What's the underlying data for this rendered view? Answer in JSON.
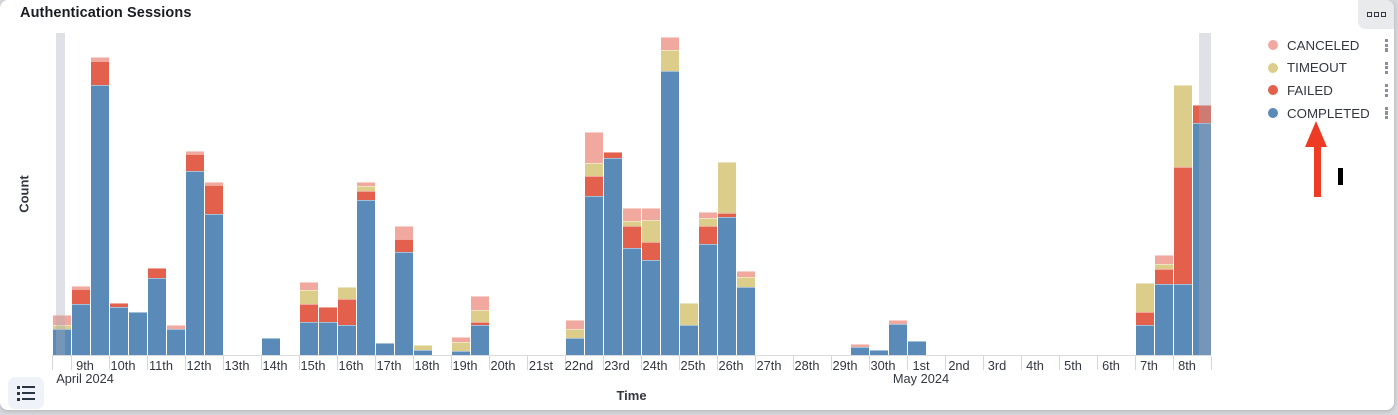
{
  "panel": {
    "title": "Authentication Sessions"
  },
  "toolbar": {
    "panel_options_icon": "boxes-horizontal-icon"
  },
  "footer": {
    "legend_toggle_icon": "list-icon"
  },
  "legend": {
    "items": [
      {
        "label": "CANCELED",
        "color": "#f1a99f"
      },
      {
        "label": "TIMEOUT",
        "color": "#dcce8a"
      },
      {
        "label": "FAILED",
        "color": "#e2604c"
      },
      {
        "label": "COMPLETED",
        "color": "#5a8ab8"
      }
    ],
    "action_icon": "boxes-vertical-icon"
  },
  "annotations": {
    "arrow": {
      "shape": "up-arrow",
      "color": "#ee3b24",
      "points_at": "COMPLETED legend item"
    },
    "cursor": {
      "shape": "text-cursor-bar",
      "color": "#000000"
    }
  },
  "chart_data": {
    "type": "bar",
    "stacked": true,
    "title": "Authentication Sessions",
    "xlabel": "Time",
    "ylabel": "Count",
    "grid": false,
    "legend_position": "right",
    "legend_order": [
      "CANCELED",
      "TIMEOUT",
      "FAILED",
      "COMPLETED"
    ],
    "y_tick_labels_shown": false,
    "ylim": [
      0,
      325
    ],
    "x_start": "2024-04-08T12:00",
    "x_interval_hours": 12,
    "x_bucket_count": 61,
    "x_tick_labels": [
      "9th",
      "10th",
      "11th",
      "12th",
      "13th",
      "14th",
      "15th",
      "16th",
      "17th",
      "18th",
      "19th",
      "20th",
      "21st",
      "22nd",
      "23rd",
      "24th",
      "25th",
      "26th",
      "27th",
      "28th",
      "29th",
      "30th",
      "1st",
      "2nd",
      "3rd",
      "4th",
      "5th",
      "6th",
      "7th",
      "8th"
    ],
    "x_month_labels": [
      {
        "label": "April 2024",
        "day_index": 0
      },
      {
        "label": "May 2024",
        "day_index": 22
      }
    ],
    "partial_bucket_endzones": [
      "left",
      "right"
    ],
    "series": [
      {
        "name": "COMPLETED",
        "color": "#5a8ab8",
        "values": [
          26,
          51,
          273,
          48,
          43,
          78,
          26,
          186,
          142,
          0,
          0,
          17,
          0,
          33,
          33,
          30,
          156,
          12,
          104,
          5,
          0,
          4,
          30,
          0,
          0,
          0,
          0,
          17,
          161,
          199,
          108,
          96,
          287,
          30,
          112,
          139,
          69,
          0,
          0,
          0,
          0,
          0,
          8,
          5,
          31,
          14,
          0,
          0,
          0,
          0,
          0,
          0,
          0,
          0,
          0,
          0,
          0,
          30,
          72,
          72,
          234
        ]
      },
      {
        "name": "FAILED",
        "color": "#e2604c",
        "values": [
          0,
          16,
          24,
          5,
          0,
          10,
          0,
          17,
          30,
          0,
          0,
          0,
          0,
          18,
          15,
          27,
          10,
          0,
          13,
          0,
          0,
          0,
          3,
          0,
          0,
          0,
          0,
          0,
          20,
          6,
          22,
          18,
          0,
          0,
          18,
          4,
          0,
          0,
          0,
          0,
          0,
          0,
          0,
          0,
          0,
          0,
          0,
          0,
          0,
          0,
          0,
          0,
          0,
          0,
          0,
          0,
          0,
          13,
          15,
          118,
          18
        ]
      },
      {
        "name": "TIMEOUT",
        "color": "#dcce8a",
        "values": [
          4,
          0,
          0,
          0,
          0,
          0,
          0,
          0,
          0,
          0,
          0,
          0,
          0,
          15,
          0,
          12,
          5,
          0,
          0,
          5,
          0,
          9,
          12,
          0,
          0,
          0,
          0,
          9,
          13,
          0,
          5,
          22,
          21,
          22,
          8,
          52,
          10,
          0,
          0,
          0,
          0,
          0,
          0,
          0,
          0,
          0,
          0,
          0,
          0,
          0,
          0,
          0,
          0,
          0,
          0,
          0,
          0,
          30,
          5,
          83,
          0
        ]
      },
      {
        "name": "CANCELED",
        "color": "#f1a99f",
        "values": [
          10,
          3,
          4,
          0,
          0,
          0,
          4,
          3,
          3,
          0,
          0,
          0,
          0,
          8,
          0,
          0,
          4,
          0,
          13,
          0,
          0,
          5,
          15,
          0,
          0,
          0,
          0,
          9,
          31,
          0,
          13,
          12,
          13,
          0,
          6,
          0,
          6,
          0,
          0,
          0,
          0,
          0,
          3,
          0,
          4,
          0,
          0,
          0,
          0,
          0,
          0,
          0,
          0,
          0,
          0,
          0,
          0,
          0,
          9,
          0,
          0
        ]
      }
    ]
  }
}
